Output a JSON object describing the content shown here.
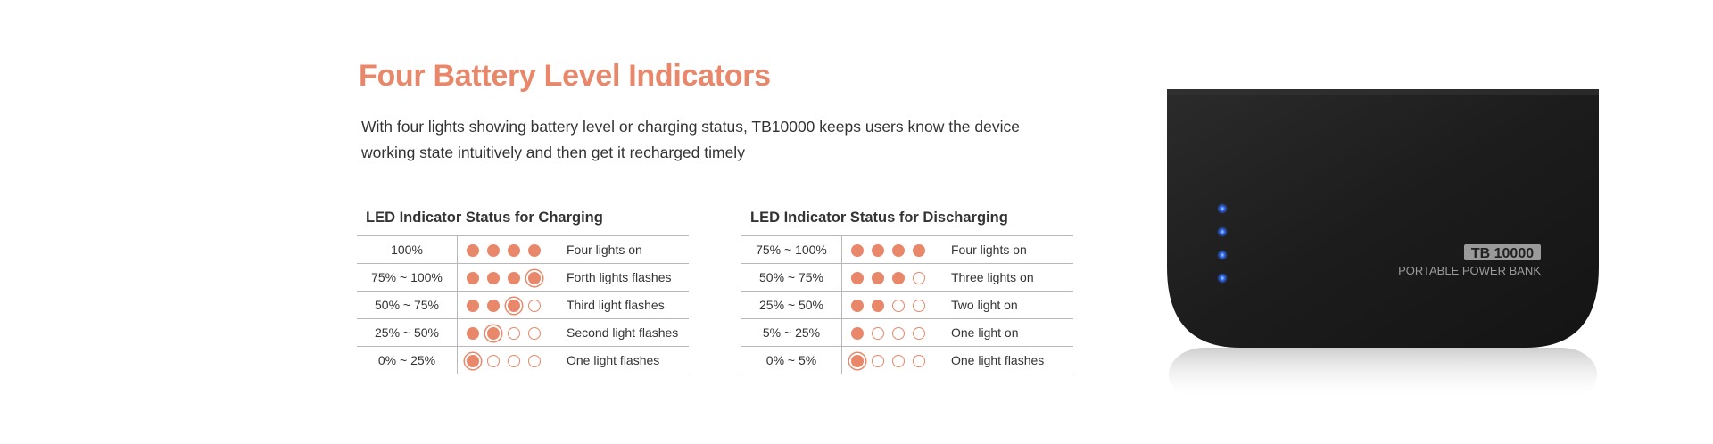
{
  "heading": "Four Battery Level Indicators",
  "description": "With four  lights showing battery level or charging status, TB10000 keeps users know the device working state intuitively and then get it recharged timely",
  "charging": {
    "title": "LED Indicator Status for Charging",
    "rows": [
      {
        "range": "100%",
        "lights": [
          "on",
          "on",
          "on",
          "on"
        ],
        "text": "Four lights on"
      },
      {
        "range": "75% ~ 100%",
        "lights": [
          "on",
          "on",
          "on",
          "flash"
        ],
        "text": "Forth lights flashes"
      },
      {
        "range": "50% ~ 75%",
        "lights": [
          "on",
          "on",
          "flash",
          "off"
        ],
        "text": "Third light flashes"
      },
      {
        "range": "25% ~ 50%",
        "lights": [
          "on",
          "flash",
          "off",
          "off"
        ],
        "text": "Second light flashes"
      },
      {
        "range": "0% ~ 25%",
        "lights": [
          "flash",
          "off",
          "off",
          "off"
        ],
        "text": "One light flashes"
      }
    ]
  },
  "discharging": {
    "title": "LED Indicator Status for Discharging",
    "rows": [
      {
        "range": "75% ~ 100%",
        "lights": [
          "on",
          "on",
          "on",
          "on"
        ],
        "text": "Four lights on"
      },
      {
        "range": "50% ~ 75%",
        "lights": [
          "on",
          "on",
          "on",
          "off"
        ],
        "text": "Three lights on"
      },
      {
        "range": "25% ~ 50%",
        "lights": [
          "on",
          "on",
          "off",
          "off"
        ],
        "text": "Two light on"
      },
      {
        "range": "5% ~ 25%",
        "lights": [
          "on",
          "off",
          "off",
          "off"
        ],
        "text": "One light on"
      },
      {
        "range": "0% ~ 5%",
        "lights": [
          "flash",
          "off",
          "off",
          "off"
        ],
        "text": "One light flashes"
      }
    ]
  },
  "device": {
    "model": "TB 10000",
    "caption": "PORTABLE POWER BANK"
  },
  "colors": {
    "accent": "#e8876a",
    "device_body": "#1e1e1e",
    "led_blue": "#2f6bff"
  }
}
